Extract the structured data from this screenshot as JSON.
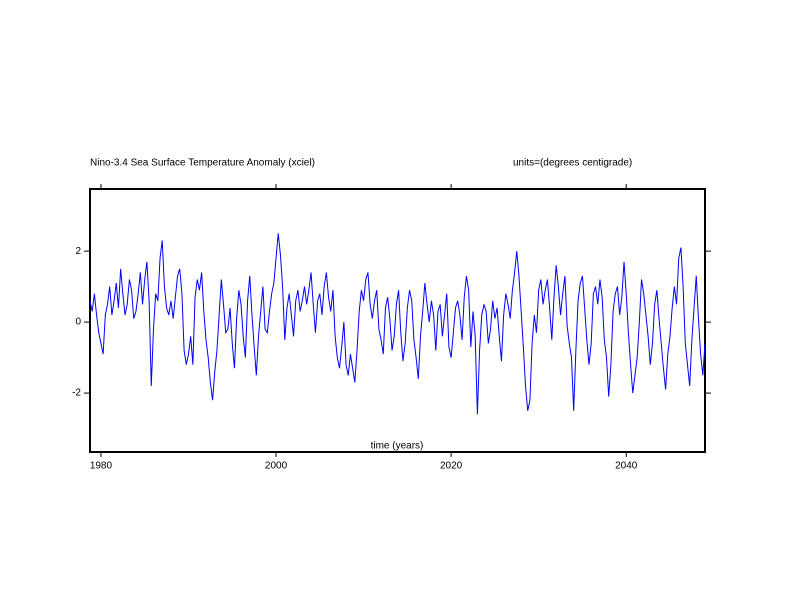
{
  "chart_data": {
    "type": "line",
    "title": "Nino-3.4 Sea Surface Temperature Anomaly (xciel)",
    "subtitle": "units=(degrees centigrade)",
    "x_label": "time (years)",
    "color": "#0000ff",
    "xlim": [
      1978.75,
      2049
    ],
    "ylim": [
      -3.66,
      3.75
    ],
    "xticks": [
      1980,
      2000,
      2020,
      2040
    ],
    "yticks": [
      -2,
      0,
      2
    ],
    "x": [
      1978.75,
      1979,
      1979.25,
      1979.5,
      1979.75,
      1980,
      1980.25,
      1980.5,
      1980.75,
      1981,
      1981.25,
      1981.5,
      1981.75,
      1982,
      1982.25,
      1982.5,
      1982.75,
      1983,
      1983.25,
      1983.5,
      1983.75,
      1984,
      1984.25,
      1984.5,
      1984.75,
      1985,
      1985.25,
      1985.5,
      1985.75,
      1986,
      1986.25,
      1986.5,
      1986.75,
      1987,
      1987.25,
      1987.5,
      1987.75,
      1988,
      1988.25,
      1988.5,
      1988.75,
      1989,
      1989.25,
      1989.5,
      1989.75,
      1990,
      1990.25,
      1990.5,
      1990.75,
      1991,
      1991.25,
      1991.5,
      1991.75,
      1992,
      1992.25,
      1992.5,
      1992.75,
      1993,
      1993.25,
      1993.5,
      1993.75,
      1994,
      1994.25,
      1994.5,
      1994.75,
      1995,
      1995.25,
      1995.5,
      1995.75,
      1996,
      1996.25,
      1996.5,
      1996.75,
      1997,
      1997.25,
      1997.5,
      1997.75,
      1998,
      1998.25,
      1998.5,
      1998.75,
      1999,
      1999.25,
      1999.5,
      1999.75,
      2000,
      2000.25,
      2000.5,
      2000.75,
      2001,
      2001.25,
      2001.5,
      2001.75,
      2002,
      2002.25,
      2002.5,
      2002.75,
      2003,
      2003.25,
      2003.5,
      2003.75,
      2004,
      2004.25,
      2004.5,
      2004.75,
      2005,
      2005.25,
      2005.5,
      2005.75,
      2006,
      2006.25,
      2006.5,
      2006.75,
      2007,
      2007.25,
      2007.5,
      2007.75,
      2008,
      2008.25,
      2008.5,
      2008.75,
      2009,
      2009.25,
      2009.5,
      2009.75,
      2010,
      2010.25,
      2010.5,
      2010.75,
      2011,
      2011.25,
      2011.5,
      2011.75,
      2012,
      2012.25,
      2012.5,
      2012.75,
      2013,
      2013.25,
      2013.5,
      2013.75,
      2014,
      2014.25,
      2014.5,
      2014.75,
      2015,
      2015.25,
      2015.5,
      2015.75,
      2016,
      2016.25,
      2016.5,
      2016.75,
      2017,
      2017.25,
      2017.5,
      2017.75,
      2018,
      2018.25,
      2018.5,
      2018.75,
      2019,
      2019.25,
      2019.5,
      2019.75,
      2020,
      2020.25,
      2020.5,
      2020.75,
      2021,
      2021.25,
      2021.5,
      2021.75,
      2022,
      2022.25,
      2022.5,
      2022.75,
      2023,
      2023.25,
      2023.5,
      2023.75,
      2024,
      2024.25,
      2024.5,
      2024.75,
      2025,
      2025.25,
      2025.5,
      2025.75,
      2026,
      2026.25,
      2026.5,
      2026.75,
      2027,
      2027.25,
      2027.5,
      2027.75,
      2028,
      2028.25,
      2028.5,
      2028.75,
      2029,
      2029.25,
      2029.5,
      2029.75,
      2030,
      2030.25,
      2030.5,
      2030.75,
      2031,
      2031.25,
      2031.5,
      2031.75,
      2032,
      2032.25,
      2032.5,
      2032.75,
      2033,
      2033.25,
      2033.5,
      2033.75,
      2034,
      2034.25,
      2034.5,
      2034.75,
      2035,
      2035.25,
      2035.5,
      2035.75,
      2036,
      2036.25,
      2036.5,
      2036.75,
      2037,
      2037.25,
      2037.5,
      2037.75,
      2038,
      2038.25,
      2038.5,
      2038.75,
      2039,
      2039.25,
      2039.5,
      2039.75,
      2040,
      2040.25,
      2040.5,
      2040.75,
      2041,
      2041.25,
      2041.5,
      2041.75,
      2042,
      2042.25,
      2042.5,
      2042.75,
      2043,
      2043.25,
      2043.5,
      2043.75,
      2044,
      2044.25,
      2044.5,
      2044.75,
      2045,
      2045.25,
      2045.5,
      2045.75,
      2046,
      2046.25,
      2046.5,
      2046.75,
      2047,
      2047.25,
      2047.5,
      2047.75,
      2048,
      2048.25,
      2048.5,
      2048.75,
      2049
    ],
    "values": [
      0.6,
      0.3,
      0.8,
      0.2,
      -0.3,
      -0.6,
      -0.9,
      0.2,
      0.5,
      1.0,
      0.2,
      0.6,
      1.1,
      0.4,
      1.5,
      0.8,
      0.2,
      0.5,
      1.2,
      0.9,
      0.1,
      0.3,
      0.8,
      1.4,
      0.5,
      1.2,
      1.7,
      0.6,
      -1.8,
      -0.2,
      0.8,
      0.6,
      1.8,
      2.3,
      1.0,
      0.4,
      0.2,
      0.6,
      0.1,
      0.7,
      1.3,
      1.5,
      0.8,
      -0.8,
      -1.2,
      -0.9,
      -0.4,
      -1.2,
      0.7,
      1.2,
      0.9,
      1.4,
      0.3,
      -0.5,
      -1.0,
      -1.7,
      -2.2,
      -1.4,
      -0.8,
      0.2,
      1.2,
      0.5,
      -0.3,
      -0.2,
      0.4,
      -0.6,
      -1.3,
      0.1,
      0.9,
      0.5,
      -0.4,
      -1.0,
      0.6,
      1.3,
      0.2,
      -0.7,
      -1.5,
      -0.4,
      0.3,
      1.0,
      -0.2,
      -0.3,
      0.3,
      0.8,
      1.1,
      1.8,
      2.5,
      1.9,
      1.0,
      -0.5,
      0.4,
      0.8,
      0.2,
      -0.4,
      0.6,
      0.9,
      0.3,
      0.6,
      1.0,
      0.5,
      0.9,
      1.4,
      0.5,
      -0.3,
      0.6,
      0.8,
      0.2,
      1.0,
      1.4,
      0.7,
      0.3,
      0.9,
      -0.4,
      -1.0,
      -1.3,
      -0.7,
      0.0,
      -1.2,
      -1.5,
      -0.9,
      -1.3,
      -1.7,
      -0.8,
      0.3,
      0.9,
      0.6,
      1.2,
      1.4,
      0.5,
      0.1,
      0.6,
      0.9,
      -0.2,
      -0.5,
      -0.9,
      0.4,
      0.7,
      0.1,
      -0.8,
      -0.4,
      0.5,
      0.9,
      -0.3,
      -1.1,
      -0.6,
      0.4,
      0.9,
      0.6,
      -0.5,
      -1.0,
      -1.6,
      -0.4,
      0.3,
      1.1,
      0.5,
      0.0,
      0.6,
      0.2,
      -0.8,
      0.3,
      0.5,
      -0.4,
      0.2,
      0.8,
      -0.7,
      -1.0,
      -0.3,
      0.4,
      0.6,
      0.2,
      -0.5,
      0.7,
      1.3,
      0.9,
      -0.7,
      0.3,
      -0.4,
      -2.6,
      -0.8,
      0.2,
      0.5,
      0.3,
      -0.6,
      -0.2,
      0.6,
      0.1,
      0.4,
      -0.4,
      -1.1,
      0.2,
      0.8,
      0.5,
      0.1,
      0.9,
      1.4,
      2.0,
      1.3,
      0.3,
      -0.7,
      -1.8,
      -2.5,
      -2.2,
      -0.6,
      0.2,
      -0.3,
      0.9,
      1.2,
      0.5,
      0.9,
      1.2,
      0.4,
      -0.5,
      0.7,
      1.6,
      1.0,
      0.2,
      0.8,
      1.3,
      -0.1,
      -0.6,
      -1.0,
      -2.5,
      -0.8,
      0.6,
      1.1,
      1.3,
      0.4,
      -0.5,
      -1.2,
      -0.6,
      0.8,
      1.0,
      0.5,
      1.2,
      0.7,
      -0.5,
      -1.0,
      -2.1,
      -1.2,
      0.3,
      0.8,
      1.0,
      0.2,
      0.7,
      1.7,
      0.8,
      -0.3,
      -1.2,
      -2.0,
      -1.5,
      -1.0,
      0.0,
      1.2,
      0.8,
      0.2,
      -0.4,
      -1.2,
      -0.6,
      0.5,
      0.9,
      0.1,
      -0.6,
      -1.3,
      -1.9,
      -0.9,
      -0.4,
      0.4,
      1.0,
      0.5,
      1.8,
      2.1,
      1.0,
      -0.6,
      -1.2,
      -1.8,
      -0.5,
      0.4,
      1.3,
      0.1,
      -0.9,
      -1.5,
      -0.6
    ]
  }
}
